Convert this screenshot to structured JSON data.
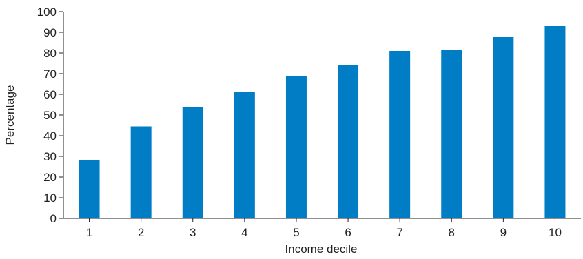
{
  "chart_data": {
    "type": "bar",
    "title": "",
    "xlabel": "Income decile",
    "ylabel": "Percentage",
    "categories": [
      "1",
      "2",
      "3",
      "4",
      "5",
      "6",
      "7",
      "8",
      "9",
      "10"
    ],
    "values": [
      28,
      44.5,
      53.8,
      61,
      69,
      74.3,
      81,
      81.6,
      88,
      93
    ],
    "ylim": [
      0,
      100
    ],
    "yticks": [
      "0",
      "10",
      "20",
      "30",
      "40",
      "50",
      "60",
      "70",
      "80",
      "90",
      "100"
    ],
    "grid": false,
    "bar_color": "#007dc5"
  }
}
